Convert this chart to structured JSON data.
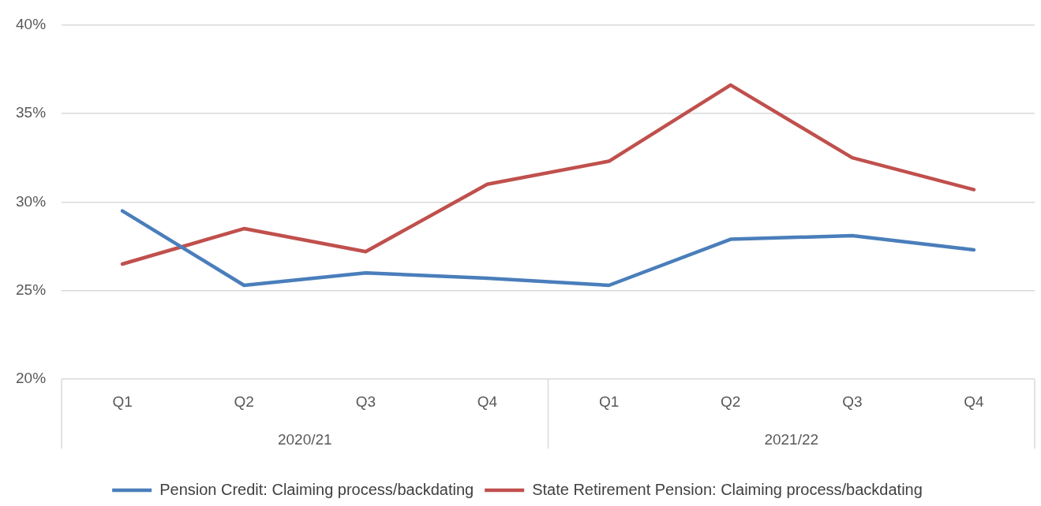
{
  "chart_data": {
    "type": "line",
    "categories": [
      "Q1",
      "Q2",
      "Q3",
      "Q4",
      "Q1",
      "Q2",
      "Q3",
      "Q4"
    ],
    "series": [
      {
        "name": "Pension Credit: Claiming process/backdating",
        "color": "#4a7ebb",
        "values": [
          29.5,
          25.3,
          26.0,
          25.7,
          25.3,
          27.9,
          28.1,
          27.3
        ]
      },
      {
        "name": "State Retirement Pension: Claiming process/backdating",
        "color": "#c0504d",
        "values": [
          26.5,
          28.5,
          27.2,
          31.0,
          32.3,
          36.6,
          32.5,
          30.7
        ]
      }
    ],
    "annotations": [
      "2020/21",
      "2021/22"
    ],
    "ylim": [
      20,
      40
    ],
    "yticks": [
      {
        "value": 20,
        "label": "20%"
      },
      {
        "value": 25,
        "label": "25%"
      },
      {
        "value": 30,
        "label": "30%"
      },
      {
        "value": 35,
        "label": "35%"
      },
      {
        "value": 40,
        "label": "40%"
      }
    ],
    "grid": "y",
    "legend": "bottom",
    "marker": "none",
    "line_style": "solid"
  }
}
